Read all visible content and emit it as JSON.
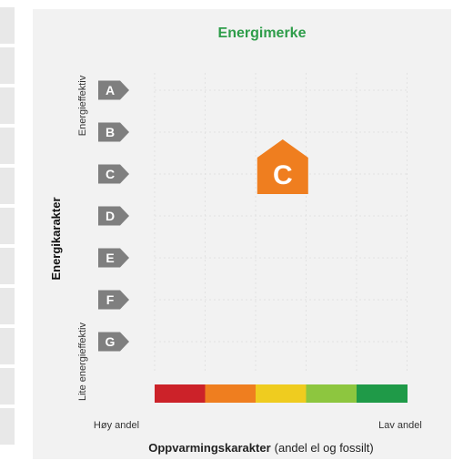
{
  "chart_data": {
    "type": "scatter",
    "title": "Energimerke",
    "ylabel": "Energikarakter",
    "y_top_label": "Energieffektiv",
    "y_bottom_label": "Lite energieffektiv",
    "xlabel_bold": "Oppvarmingskarakter",
    "xlabel_rest": "(andel el og fossilt)",
    "x_left_label": "Høy andel",
    "x_right_label": "Lav andel",
    "energy_grades": [
      "A",
      "B",
      "C",
      "D",
      "E",
      "F",
      "G"
    ],
    "heating_scale_colors": [
      "#cc2229",
      "#ef7e1f",
      "#efcc1f",
      "#8dc63f",
      "#1f9a48"
    ],
    "grid": true,
    "marker": {
      "label": "C",
      "energy_grade": "C",
      "heating_position": 2,
      "color": "#ef7e1f"
    }
  },
  "colors": {
    "title": "#2e9d4a",
    "grade_tag": "#7f7f7f",
    "panel": "#f2f2f2"
  }
}
